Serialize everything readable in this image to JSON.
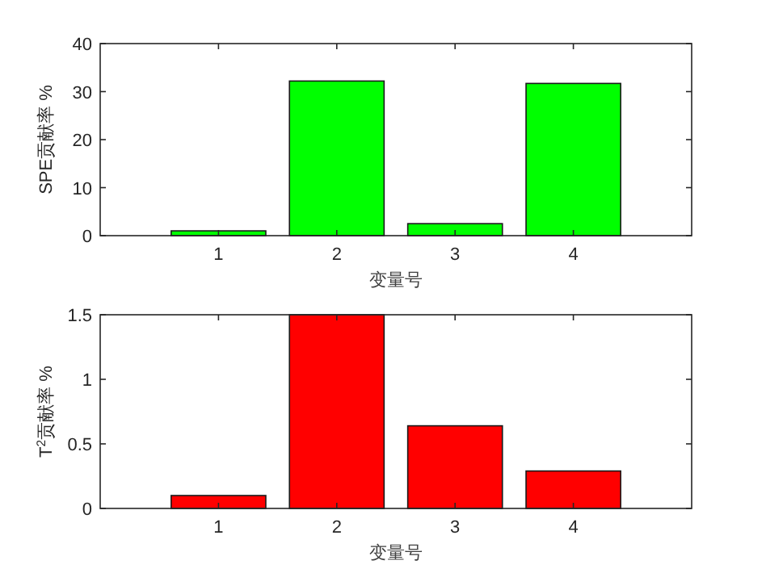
{
  "chart_data": [
    {
      "type": "bar",
      "categories": [
        "1",
        "2",
        "3",
        "4"
      ],
      "values": [
        1.0,
        32.2,
        2.5,
        31.7
      ],
      "color": "#00ff00",
      "ylim": [
        0,
        40
      ],
      "yticks": [
        0,
        10,
        20,
        30,
        40
      ],
      "xlabel": "变量号",
      "ylabel": "SPE贡献率 %"
    },
    {
      "type": "bar",
      "categories": [
        "1",
        "2",
        "3",
        "4"
      ],
      "values": [
        0.1,
        1.5,
        0.64,
        0.29
      ],
      "color": "#ff0000",
      "ylim": [
        0,
        1.5
      ],
      "yticks": [
        0,
        0.5,
        1,
        1.5
      ],
      "xlabel": "变量号",
      "ylabel": "T$^{2}$贡献率 %"
    }
  ]
}
